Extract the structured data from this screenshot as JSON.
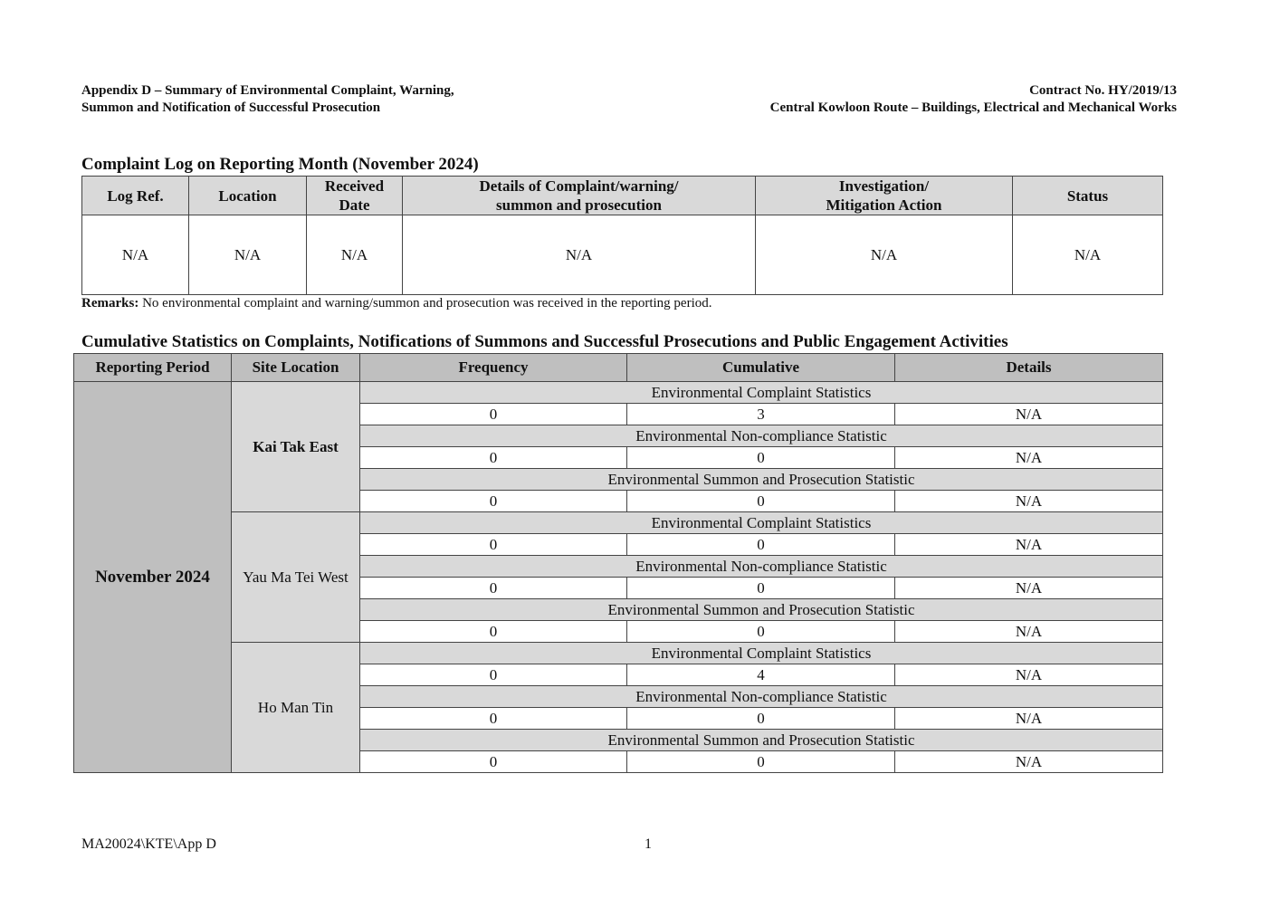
{
  "header": {
    "left_line1": "Appendix D – Summary of Environmental Complaint, Warning,",
    "left_line2": "Summon and Notification of Successful Prosecution",
    "right_line1": "Contract No. HY/2019/13",
    "right_line2": "Central Kowloon Route – Buildings, Electrical and Mechanical Works"
  },
  "complaint_log": {
    "title": "Complaint Log on Reporting Month (November 2024)",
    "columns": [
      "Log Ref.",
      "Location",
      "Received Date",
      "Details of Complaint/warning/ summon and prosecution",
      "Investigation/ Mitigation Action",
      "Status"
    ],
    "columns_split": [
      [
        "Log Ref.",
        ""
      ],
      [
        "Location",
        ""
      ],
      [
        "Received",
        "Date"
      ],
      [
        "Details of Complaint/warning/",
        "summon and prosecution"
      ],
      [
        "Investigation/",
        "Mitigation Action"
      ],
      [
        "Status",
        ""
      ]
    ],
    "row": [
      "N/A",
      "N/A",
      "N/A",
      "N/A",
      "N/A",
      "N/A"
    ],
    "remarks_label": "Remarks:",
    "remarks_text": " No environmental complaint and warning/summon and prosecution was received in the reporting period."
  },
  "cumulative": {
    "title": "Cumulative Statistics on Complaints, Notifications of Summons and Successful Prosecutions and Public Engagement Activities",
    "columns": [
      "Reporting Period",
      "Site Location",
      "Frequency",
      "Cumulative",
      "Details"
    ],
    "period": "November 2024",
    "sites": [
      {
        "name": "Kai Tak East",
        "bold": true,
        "sections": [
          {
            "label": "Environmental Complaint Statistics",
            "values": [
              "0",
              "3",
              "N/A"
            ]
          },
          {
            "label": "Environmental Non-compliance Statistic",
            "values": [
              "0",
              "0",
              "N/A"
            ]
          },
          {
            "label": "Environmental Summon and Prosecution Statistic",
            "values": [
              "0",
              "0",
              "N/A"
            ]
          }
        ]
      },
      {
        "name": "Yau Ma Tei West",
        "bold": false,
        "sections": [
          {
            "label": "Environmental Complaint Statistics",
            "values": [
              "0",
              "0",
              "N/A"
            ]
          },
          {
            "label": "Environmental Non-compliance Statistic",
            "values": [
              "0",
              "0",
              "N/A"
            ]
          },
          {
            "label": "Environmental Summon and Prosecution Statistic",
            "values": [
              "0",
              "0",
              "N/A"
            ]
          }
        ]
      },
      {
        "name": "Ho Man Tin",
        "bold": false,
        "sections": [
          {
            "label": "Environmental Complaint Statistics",
            "values": [
              "0",
              "4",
              "N/A"
            ]
          },
          {
            "label": "Environmental Non-compliance Statistic",
            "values": [
              "0",
              "0",
              "N/A"
            ]
          },
          {
            "label": "Environmental Summon and Prosecution Statistic",
            "values": [
              "0",
              "0",
              "N/A"
            ]
          }
        ]
      }
    ]
  },
  "footer": {
    "ref": "MA20024\\KTE\\App D",
    "page": "1"
  }
}
